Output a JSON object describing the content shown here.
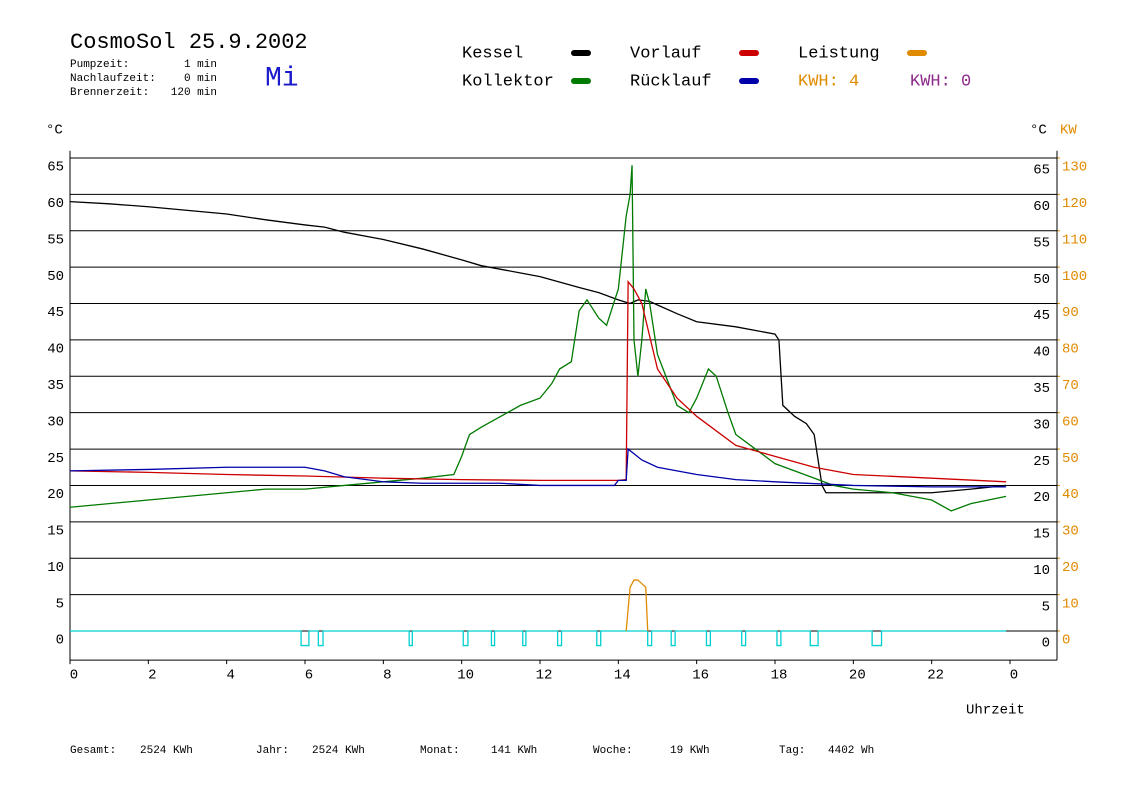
{
  "chart_data": {
    "type": "line",
    "title": "CosmoSol 25.9.2002",
    "weekday": "Mi",
    "info": [
      "Pumpzeit:",
      "1 min",
      "Nachlaufzeit:",
      "0 min",
      "Brennerzeit:",
      "120 min"
    ],
    "kwh_labels": [
      {
        "text": "KWH: 4",
        "color": "#e08a00"
      },
      {
        "text": "KWH: 0",
        "color": "#8b2a8b"
      }
    ],
    "y_unit": "°C",
    "y2_units": [
      "°C",
      "KW"
    ],
    "x_label": "Uhrzeit",
    "xlim": [
      0,
      24
    ],
    "xticks": [
      0,
      2,
      4,
      6,
      8,
      10,
      12,
      14,
      16,
      18,
      20,
      22,
      {
        "value": 24,
        "label": "0"
      }
    ],
    "ylim": [
      -4,
      66
    ],
    "yticks": [
      0,
      5,
      10,
      15,
      20,
      25,
      30,
      35,
      40,
      45,
      50,
      55,
      60,
      65
    ],
    "y2lim": [
      -8,
      132
    ],
    "y2ticks": [
      0,
      10,
      20,
      30,
      40,
      50,
      60,
      70,
      80,
      90,
      100,
      110,
      120,
      130
    ],
    "grid": true,
    "series": [
      {
        "name": "Kessel",
        "color": "#000000",
        "x": [
          0,
          1,
          2,
          3,
          4,
          5,
          6,
          6.5,
          7,
          8,
          9,
          10,
          10.5,
          11,
          12,
          13,
          13.5,
          14,
          14.3,
          14.5,
          14.8,
          15,
          15.5,
          16,
          17,
          18,
          18.1,
          18.2,
          18.5,
          18.8,
          19,
          19.2,
          19.3,
          20,
          21,
          22,
          23,
          23.9
        ],
        "values": [
          59,
          58.7,
          58.3,
          57.8,
          57.3,
          56.5,
          55.8,
          55.5,
          54.8,
          53.8,
          52.5,
          51,
          50.2,
          49.7,
          48.7,
          47.2,
          46.5,
          45.5,
          45,
          45.5,
          45.3,
          44.8,
          43.6,
          42.5,
          41.8,
          40.8,
          40,
          31,
          29.5,
          28.5,
          27,
          20,
          19,
          19,
          19,
          19,
          19.5,
          20
        ]
      },
      {
        "name": "Kollektor",
        "color": "#007a00",
        "x": [
          0,
          1,
          2,
          3,
          4,
          5,
          6,
          7,
          8,
          9,
          9.8,
          10,
          10.2,
          10.5,
          11,
          11.5,
          12,
          12.3,
          12.5,
          12.8,
          13,
          13.2,
          13.5,
          13.7,
          14,
          14.1,
          14.2,
          14.3,
          14.35,
          14.4,
          14.5,
          14.6,
          14.7,
          14.8,
          15,
          15.5,
          15.8,
          16,
          16.3,
          16.5,
          16.8,
          17,
          17.5,
          18,
          18.5,
          19,
          19.5,
          20,
          21,
          22,
          22.5,
          23,
          23.9
        ],
        "values": [
          17,
          17.5,
          18,
          18.5,
          19,
          19.5,
          19.5,
          20,
          20.5,
          21,
          21.5,
          24,
          27,
          28,
          29.5,
          31,
          32,
          34,
          36,
          37,
          44,
          45.5,
          43,
          42,
          47,
          52,
          57,
          60,
          64,
          40,
          35,
          40,
          47,
          45,
          38,
          31,
          30,
          32,
          36,
          35,
          30,
          27,
          25,
          23,
          22,
          21,
          20,
          19.5,
          19,
          18,
          16.5,
          17.5,
          18.5
        ]
      },
      {
        "name": "Vorlauf",
        "color": "#cc0000",
        "x": [
          0,
          2,
          4,
          6,
          8,
          10,
          12,
          14,
          14.2,
          14.25,
          14.4,
          14.6,
          15,
          15.5,
          16,
          17,
          18,
          19,
          20,
          22,
          23.9
        ],
        "values": [
          22,
          21.8,
          21.5,
          21.3,
          21,
          20.8,
          20.7,
          20.7,
          20.8,
          48,
          47,
          45,
          36,
          32,
          29.5,
          25.5,
          24,
          22.5,
          21.5,
          21,
          20.5
        ]
      },
      {
        "name": "Rücklauf",
        "color": "#0000aa",
        "x": [
          0,
          2,
          4,
          6,
          6.5,
          7,
          8,
          9,
          10,
          11,
          12,
          13.9,
          14,
          14.2,
          14.25,
          14.6,
          15,
          16,
          17,
          18,
          20,
          22,
          23.9
        ],
        "values": [
          22,
          22.2,
          22.5,
          22.5,
          22,
          21.2,
          20.5,
          20.3,
          20.3,
          20.3,
          20,
          20,
          20.7,
          20.7,
          25,
          23.5,
          22.5,
          21.5,
          20.8,
          20.5,
          20,
          19.8,
          19.8
        ]
      },
      {
        "name": "Leistung",
        "color": "#e08a00",
        "axis": "y2",
        "x": [
          14.2,
          14.3,
          14.4,
          14.5,
          14.6,
          14.7,
          14.75
        ],
        "values": [
          0,
          12,
          14,
          14,
          13,
          12,
          0
        ]
      },
      {
        "color": "#00d0d0",
        "x": [
          0,
          5.9,
          5.9,
          6.1,
          6.1,
          6.34,
          6.34,
          6.46,
          6.46,
          8.66,
          8.66,
          8.74,
          8.74,
          10.04,
          10.04,
          10.16,
          10.16,
          10.76,
          10.76,
          10.84,
          10.84,
          11.56,
          11.56,
          11.64,
          11.64,
          12.45,
          12.45,
          12.55,
          12.55,
          13.45,
          13.45,
          13.55,
          13.55,
          14.75,
          14.75,
          14.85,
          14.85,
          15.35,
          15.35,
          15.45,
          15.45,
          16.25,
          16.25,
          16.35,
          16.35,
          17.15,
          17.15,
          17.25,
          17.25,
          18.05,
          18.05,
          18.15,
          18.15,
          18.9,
          18.9,
          19.1,
          19.1,
          20.48,
          20.48,
          20.72,
          20.72,
          23.9
        ],
        "values": [
          0,
          0,
          -2,
          -2,
          0,
          0,
          -2,
          -2,
          0,
          0,
          -2,
          -2,
          0,
          0,
          -2,
          -2,
          0,
          0,
          -2,
          -2,
          0,
          0,
          -2,
          -2,
          0,
          0,
          -2,
          -2,
          0,
          0,
          -2,
          -2,
          0,
          0,
          -2,
          -2,
          0,
          0,
          -2,
          -2,
          0,
          0,
          -2,
          -2,
          0,
          0,
          -2,
          -2,
          0,
          0,
          -2,
          -2,
          0,
          0,
          -2,
          -2,
          0,
          0,
          -2,
          -2,
          0,
          0
        ]
      }
    ],
    "footer": [
      {
        "label": "Gesamt:",
        "value": "2524 KWh"
      },
      {
        "label": "Jahr:",
        "value": "2524 KWh"
      },
      {
        "label": "Monat:",
        "value": "141 KWh"
      },
      {
        "label": "Woche:",
        "value": "19 KWh"
      },
      {
        "label": "Tag:",
        "value": "4402 Wh"
      }
    ]
  }
}
